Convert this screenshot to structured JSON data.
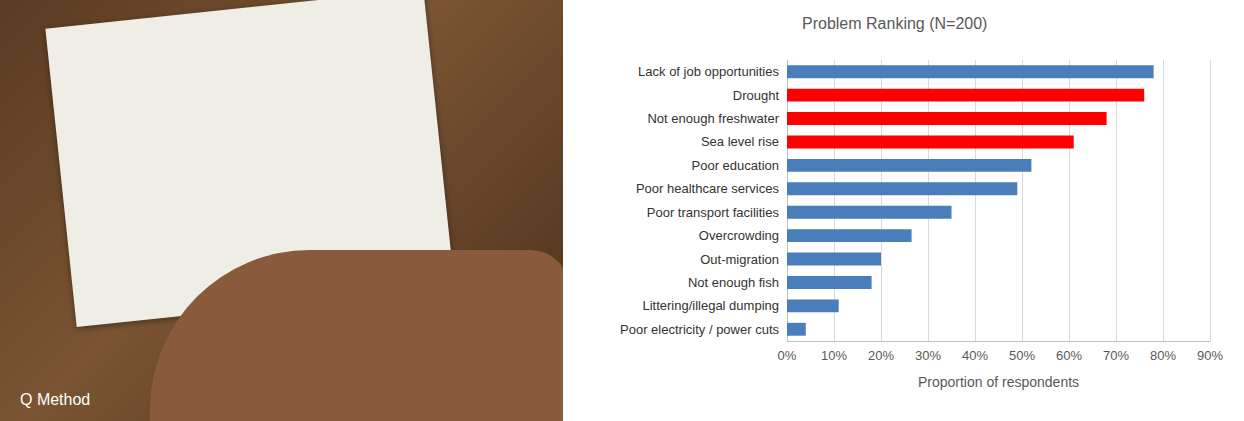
{
  "panel_caption": "Q Method",
  "chart_data": {
    "type": "bar",
    "title": "Problem Ranking (N=200)",
    "orientation": "horizontal",
    "categories": [
      "Lack of job opportunities",
      "Drought",
      "Not enough freshwater",
      "Sea level rise",
      "Poor education",
      "Poor healthcare services",
      "Poor transport facilities",
      "Overcrowding",
      "Out-migration",
      "Not enough fish",
      "Littering/illegal dumping",
      "Poor electricity / power cuts"
    ],
    "values": [
      78,
      76,
      68,
      61,
      52,
      49,
      35,
      26.5,
      20,
      18,
      11,
      4
    ],
    "colors": [
      "#4a7ebb",
      "#ff0000",
      "#ff0000",
      "#ff0000",
      "#4a7ebb",
      "#4a7ebb",
      "#4a7ebb",
      "#4a7ebb",
      "#4a7ebb",
      "#4a7ebb",
      "#4a7ebb",
      "#4a7ebb"
    ],
    "x_label": "Proportion of respondents",
    "xlim": [
      0,
      90
    ],
    "xticks": [
      {
        "value": 0,
        "label": "0%"
      },
      {
        "value": 10,
        "label": "10%"
      },
      {
        "value": 20,
        "label": "20%"
      },
      {
        "value": 30,
        "label": "30%"
      },
      {
        "value": 40,
        "label": "40%"
      },
      {
        "value": 50,
        "label": "50%"
      },
      {
        "value": 60,
        "label": "60%"
      },
      {
        "value": 70,
        "label": "70%"
      },
      {
        "value": 80,
        "label": "80%"
      },
      {
        "value": 90,
        "label": "90%"
      }
    ],
    "grid": true
  }
}
